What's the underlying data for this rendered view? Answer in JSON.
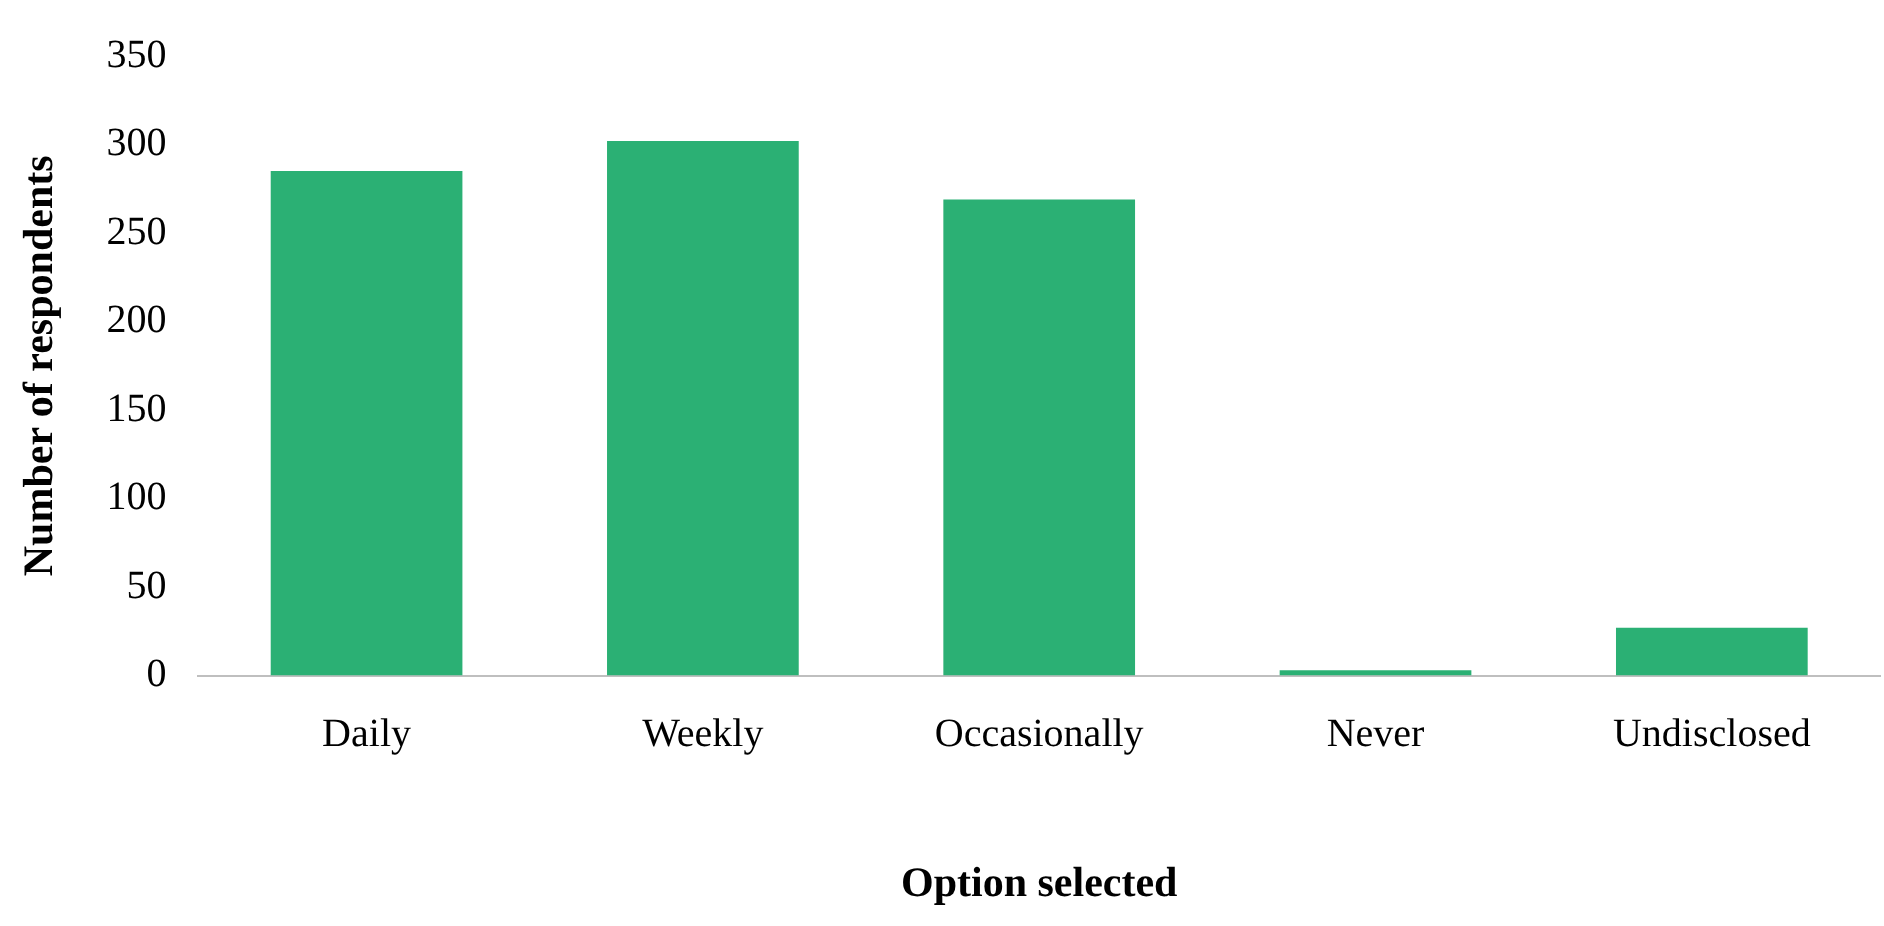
{
  "chart_data": {
    "type": "bar",
    "xlabel": "Option selected",
    "ylabel": "Number of respondents",
    "categories": [
      "Daily",
      "Weekly",
      "Occasionally",
      "Never",
      "Undisclosed"
    ],
    "series": [
      {
        "color": "#2bb074",
        "values": [
          285,
          302,
          269,
          3,
          27
        ]
      }
    ],
    "ylim": [
      0,
      350
    ],
    "yticks": [
      0,
      50,
      100,
      150,
      200,
      250,
      300,
      350
    ],
    "grid": false,
    "legend": false
  }
}
